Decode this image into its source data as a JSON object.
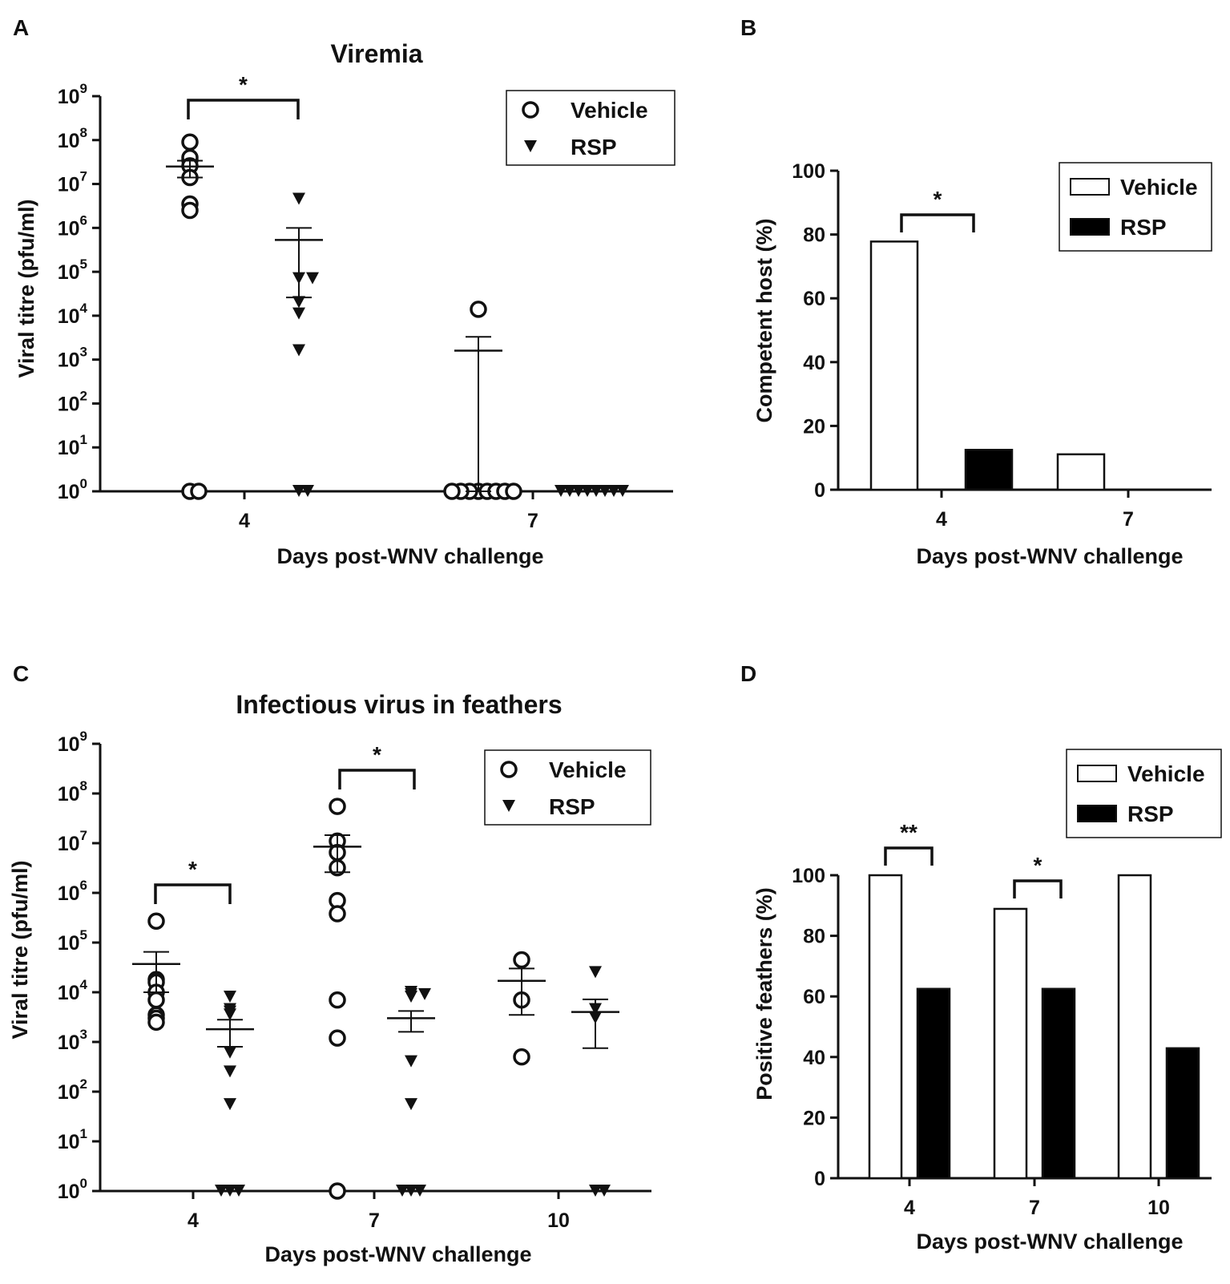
{
  "figure": {
    "panels": [
      "A",
      "B",
      "C",
      "D"
    ]
  },
  "chart_data": [
    {
      "panel": "A",
      "type": "scatter",
      "title": "Viremia",
      "xlabel": "Days post-WNV challenge",
      "ylabel": "Viral titre (pfu/ml)",
      "yscale": "log",
      "ylim": [
        1,
        1000000000
      ],
      "ytick_exponents": [
        "0",
        "1",
        "2",
        "3",
        "4",
        "5",
        "6",
        "7",
        "8",
        "9"
      ],
      "categories": [
        "4",
        "7"
      ],
      "legend": [
        "Vehicle",
        "RSP"
      ],
      "series": [
        {
          "name": "Vehicle",
          "marker": "circle",
          "points": [
            [
              0,
              90000000.0
            ],
            [
              0,
              35000000.0
            ],
            [
              0,
              40000000.0
            ],
            [
              0,
              26000000.0
            ],
            [
              0,
              14000000.0
            ],
            [
              0,
              3500000.0
            ],
            [
              0,
              2500000.0
            ],
            [
              0,
              1
            ],
            [
              0,
              1
            ],
            [
              1,
              14000.0
            ],
            [
              1,
              1
            ],
            [
              1,
              1
            ],
            [
              1,
              1
            ],
            [
              1,
              1
            ],
            [
              1,
              1
            ],
            [
              1,
              1
            ],
            [
              1,
              1
            ],
            [
              1,
              1
            ]
          ],
          "mean": [
            25000000.0,
            1600.0
          ],
          "sem_low": [
            14000000.0,
            1
          ],
          "sem_high": [
            34000000.0,
            3300.0
          ]
        },
        {
          "name": "RSP",
          "marker": "triangle-down",
          "points": [
            [
              0,
              4500000.0
            ],
            [
              0,
              70000.0
            ],
            [
              0,
              70000.0
            ],
            [
              0,
              20000.0
            ],
            [
              0,
              11000.0
            ],
            [
              0,
              1600.0
            ],
            [
              0,
              1
            ],
            [
              0,
              1
            ],
            [
              1,
              1
            ],
            [
              1,
              1
            ],
            [
              1,
              1
            ],
            [
              1,
              1
            ],
            [
              1,
              1
            ],
            [
              1,
              1
            ],
            [
              1,
              1
            ],
            [
              1,
              1
            ]
          ],
          "mean": [
            530000.0,
            null
          ],
          "sem_low": [
            26000.0,
            null
          ],
          "sem_high": [
            1000000.0,
            null
          ]
        }
      ],
      "annotations": [
        {
          "text": "*",
          "category": 0
        }
      ]
    },
    {
      "panel": "B",
      "type": "bar",
      "xlabel": "Days post-WNV challenge",
      "ylabel": "Competent host (%)",
      "ylim": [
        0,
        100
      ],
      "yticks": [
        "0",
        "20",
        "40",
        "60",
        "80",
        "100"
      ],
      "categories": [
        "4",
        "7"
      ],
      "legend": [
        "Vehicle",
        "RSP"
      ],
      "series": [
        {
          "name": "Vehicle",
          "color": "#ffffff",
          "values": [
            77.8,
            11.1
          ]
        },
        {
          "name": "RSP",
          "color": "#000000",
          "values": [
            12.5,
            0
          ]
        }
      ],
      "annotations": [
        {
          "text": "*",
          "category": 0
        }
      ]
    },
    {
      "panel": "C",
      "type": "scatter",
      "title": "Infectious virus in feathers",
      "xlabel": "Days post-WNV challenge",
      "ylabel": "Viral titre (pfu/ml)",
      "yscale": "log",
      "ylim": [
        1,
        1000000000
      ],
      "ytick_exponents": [
        "0",
        "1",
        "2",
        "3",
        "4",
        "5",
        "6",
        "7",
        "8",
        "9"
      ],
      "categories": [
        "4",
        "7",
        "10"
      ],
      "legend": [
        "Vehicle",
        "RSP"
      ],
      "series": [
        {
          "name": "Vehicle",
          "marker": "circle",
          "points": [
            [
              0,
              270000.0
            ],
            [
              0,
              18000.0
            ],
            [
              0,
              16000.0
            ],
            [
              0,
              10000.0
            ],
            [
              0,
              7000.0
            ],
            [
              0,
              3500.0
            ],
            [
              0,
              3000.0
            ],
            [
              0,
              2500.0
            ],
            [
              1,
              55000000.0
            ],
            [
              1,
              11000000.0
            ],
            [
              1,
              6500000.0
            ],
            [
              1,
              3200000.0
            ],
            [
              1,
              700000.0
            ],
            [
              1,
              380000.0
            ],
            [
              1,
              7000.0
            ],
            [
              1,
              1200.0
            ],
            [
              1,
              1
            ],
            [
              2,
              45000.0
            ],
            [
              2,
              7000.0
            ],
            [
              2,
              500
            ]
          ],
          "mean": [
            37000.0,
            8500000.0,
            17000.0
          ],
          "sem_low": [
            10000.0,
            2600000.0,
            3500.0
          ],
          "sem_high": [
            65000.0,
            14500000.0,
            30000.0
          ]
        },
        {
          "name": "RSP",
          "marker": "triangle-down",
          "points": [
            [
              0,
              8000.0
            ],
            [
              0,
              4500.0
            ],
            [
              0,
              4000.0
            ],
            [
              0,
              3500.0
            ],
            [
              0,
              600
            ],
            [
              0,
              250
            ],
            [
              0,
              55
            ],
            [
              0,
              1
            ],
            [
              0,
              1
            ],
            [
              0,
              1
            ],
            [
              1,
              9000.0
            ],
            [
              1,
              9000.0
            ],
            [
              1,
              8000.0
            ],
            [
              1,
              10000.0
            ],
            [
              1,
              400
            ],
            [
              1,
              55
            ],
            [
              1,
              1
            ],
            [
              1,
              1
            ],
            [
              1,
              1
            ],
            [
              2,
              25000.0
            ],
            [
              2,
              4500.0
            ],
            [
              2,
              3000.0
            ],
            [
              2,
              1
            ],
            [
              2,
              1
            ]
          ],
          "mean": [
            1800.0,
            3000.0,
            4000.0
          ],
          "sem_low": [
            800,
            1600.0,
            750
          ],
          "sem_high": [
            2800.0,
            4200.0,
            7200.0
          ]
        }
      ],
      "annotations": [
        {
          "text": "*",
          "category": 0
        },
        {
          "text": "*",
          "category": 1
        }
      ]
    },
    {
      "panel": "D",
      "type": "bar",
      "xlabel": "Days post-WNV challenge",
      "ylabel": "Positive feathers (%)",
      "ylim": [
        0,
        100
      ],
      "yticks": [
        "0",
        "20",
        "40",
        "60",
        "80",
        "100"
      ],
      "categories": [
        "4",
        "7",
        "10"
      ],
      "legend": [
        "Vehicle",
        "RSP"
      ],
      "series": [
        {
          "name": "Vehicle",
          "color": "#ffffff",
          "values": [
            100,
            88.9,
            100
          ]
        },
        {
          "name": "RSP",
          "color": "#000000",
          "values": [
            62.5,
            62.5,
            42.9
          ]
        }
      ],
      "annotations": [
        {
          "text": "**",
          "category": 0
        },
        {
          "text": "*",
          "category": 1
        }
      ]
    }
  ]
}
